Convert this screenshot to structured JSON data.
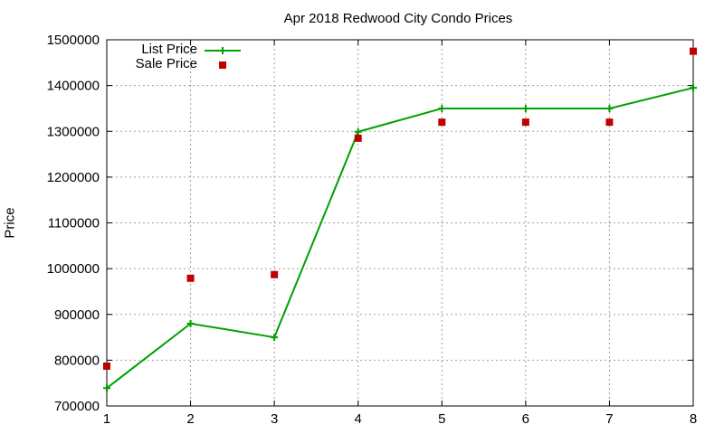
{
  "chart_data": {
    "type": "line",
    "title": "Apr 2018 Redwood City Condo Prices",
    "xlabel": "",
    "ylabel": "Price",
    "x": [
      1,
      2,
      3,
      4,
      5,
      6,
      7,
      8
    ],
    "xlim": [
      1,
      8
    ],
    "ylim": [
      700000,
      1500000
    ],
    "xticks": [
      "1",
      "2",
      "3",
      "4",
      "5",
      "6",
      "7",
      "8"
    ],
    "yticks": [
      "700000",
      "800000",
      "900000",
      "1000000",
      "1100000",
      "1200000",
      "1300000",
      "1400000",
      "1500000"
    ],
    "grid": true,
    "legend_position": "top-left",
    "series": [
      {
        "name": "List Price",
        "style": "linespoints",
        "color": "#00a000",
        "marker": "plus",
        "values": [
          739000,
          880000,
          850000,
          1299000,
          1350000,
          1350000,
          1350000,
          1395000
        ]
      },
      {
        "name": "Sale Price",
        "style": "points",
        "color": "#c00000",
        "marker": "square",
        "values": [
          787000,
          979000,
          987000,
          1285000,
          1320000,
          1320000,
          1320000,
          1475000
        ]
      }
    ]
  }
}
